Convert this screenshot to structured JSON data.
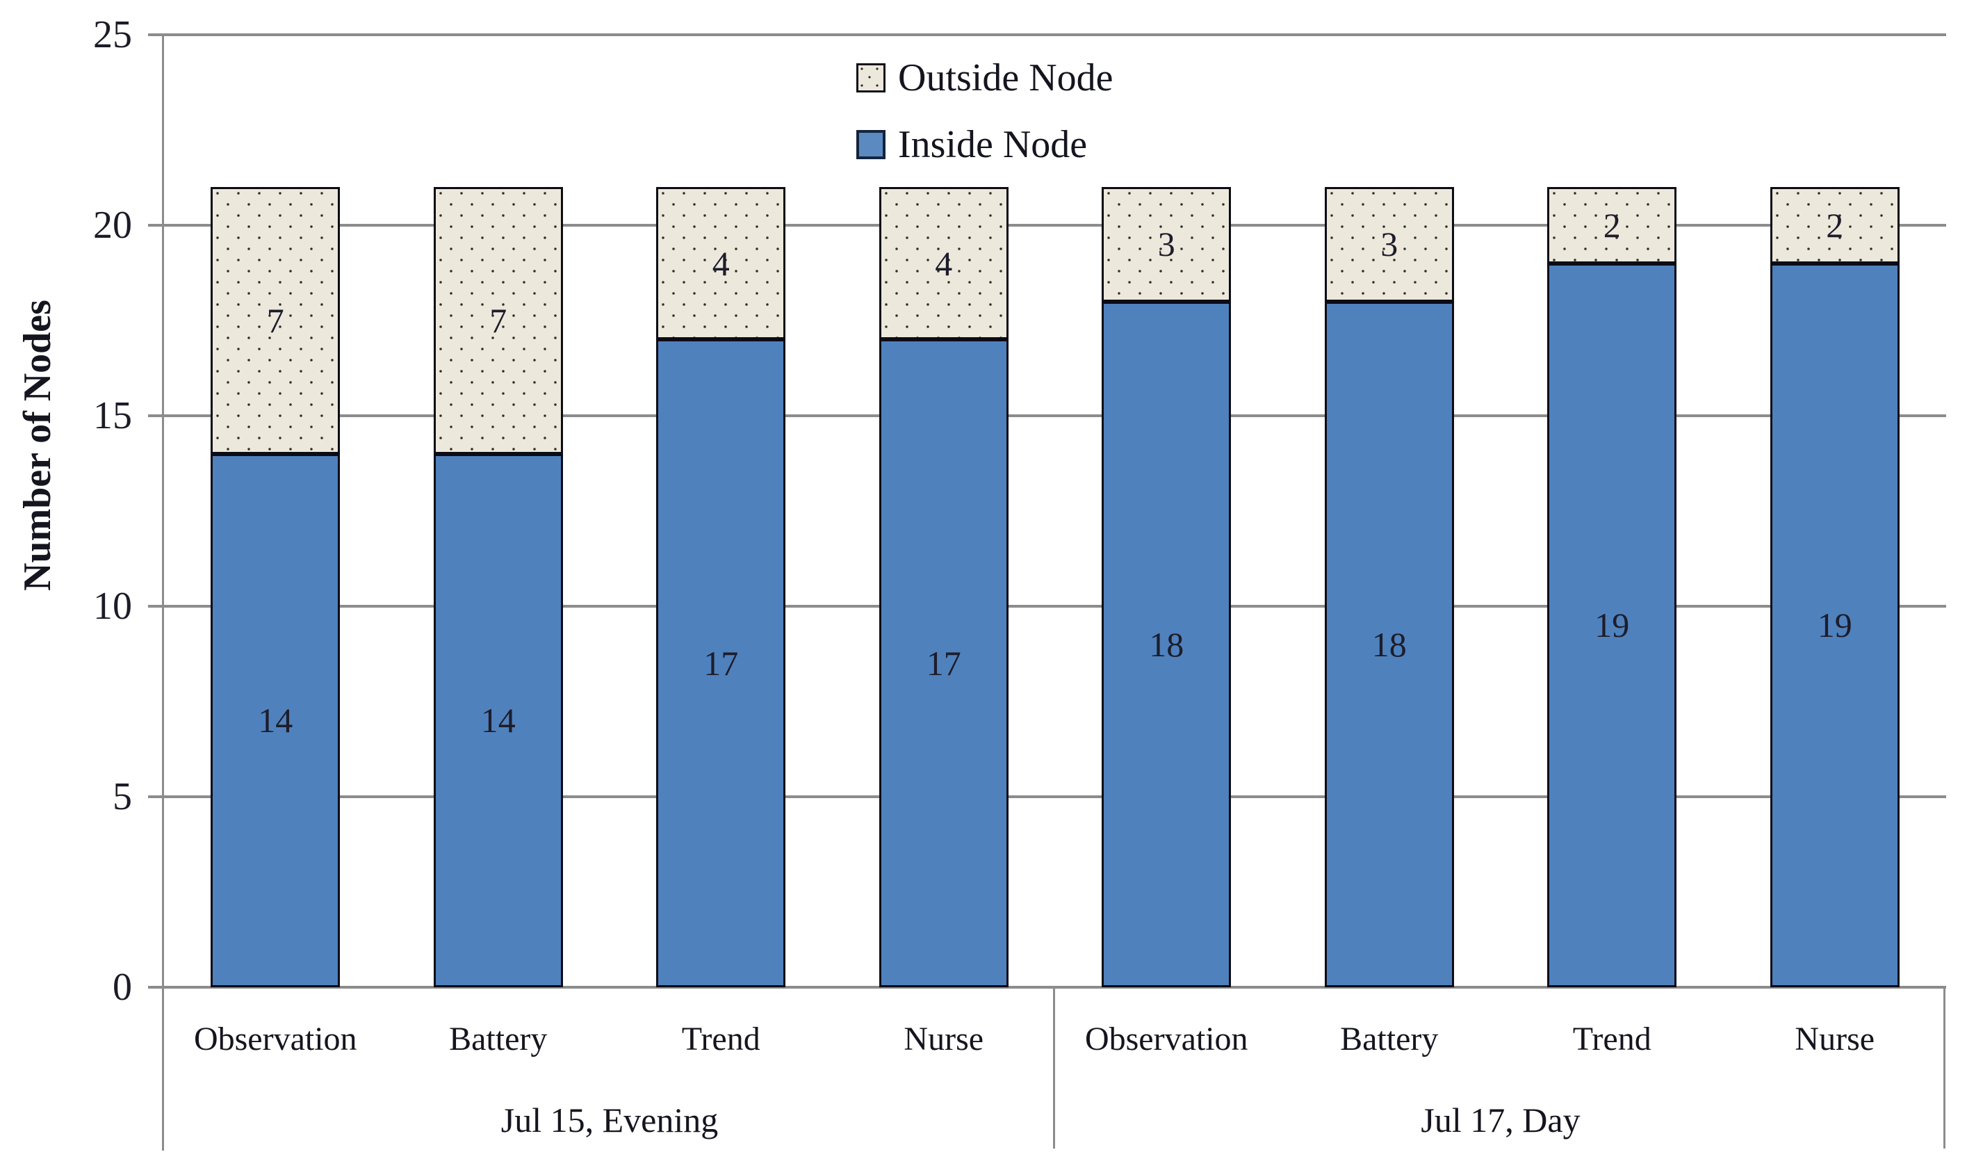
{
  "chart_data": {
    "type": "bar",
    "stacked": true,
    "title": "",
    "xlabel": "",
    "ylabel": "Number of Nodes",
    "ylim": [
      0,
      25
    ],
    "yticks": [
      0,
      5,
      10,
      15,
      20,
      25
    ],
    "grid": true,
    "legend_position": "top-center",
    "groups": [
      {
        "label": "Jul 15, Evening",
        "categories": [
          "Observation",
          "Battery",
          "Trend",
          "Nurse"
        ]
      },
      {
        "label": "Jul 17, Day",
        "categories": [
          "Observation",
          "Battery",
          "Trend",
          "Nurse"
        ]
      }
    ],
    "categories": [
      "Observation",
      "Battery",
      "Trend",
      "Nurse",
      "Observation",
      "Battery",
      "Trend",
      "Nurse"
    ],
    "series": [
      {
        "name": "Inside Node",
        "pattern": "solid",
        "color": "#4F81BD",
        "values": [
          14,
          14,
          17,
          17,
          18,
          18,
          19,
          19
        ]
      },
      {
        "name": "Outside Node",
        "pattern": "dotted",
        "color": "#EDE8DC",
        "values": [
          7,
          7,
          4,
          4,
          3,
          3,
          2,
          2
        ]
      }
    ],
    "totals": [
      21,
      21,
      21,
      21,
      21,
      21,
      21,
      21
    ],
    "data_labels_shown": true
  },
  "legend": {
    "outside_label": "Outside Node",
    "inside_label": "Inside Node"
  },
  "axis": {
    "ylabel": "Number of Nodes"
  },
  "colors": {
    "inside_fill": "#4F81BD",
    "outside_fill": "#EDE8DC",
    "outside_dot": "#2e2e26",
    "bar_border": "#0c0c16",
    "gridline": "#8c8c8c",
    "text": "#15151f",
    "background": "#ffffff"
  }
}
